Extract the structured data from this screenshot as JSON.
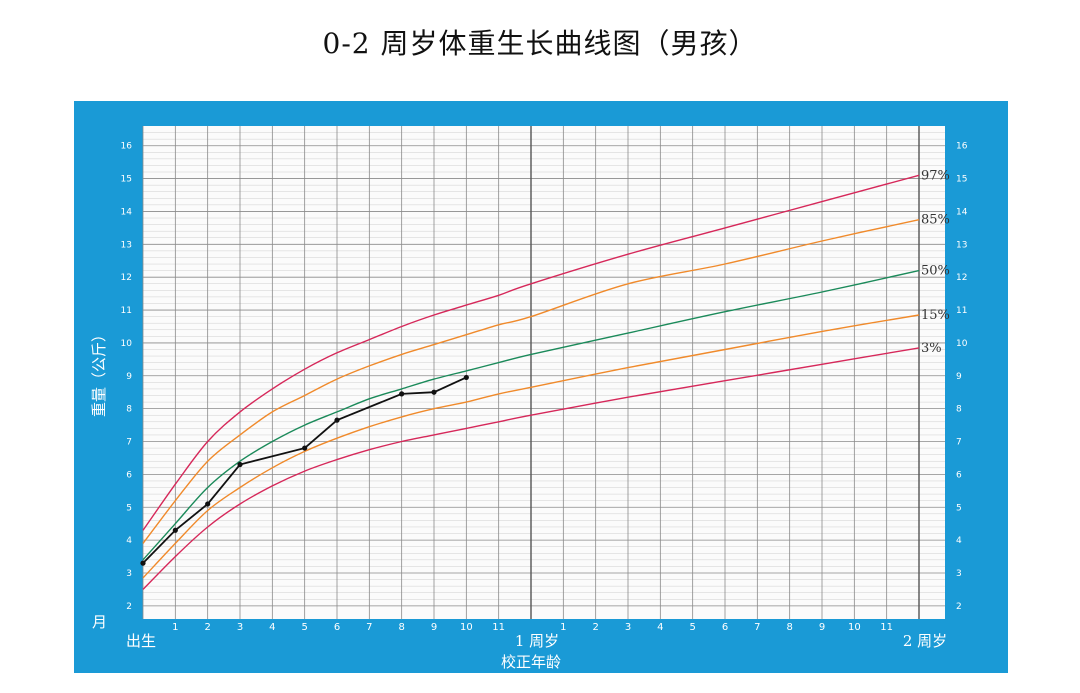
{
  "title": "0-2 周岁体重生长曲线图（男孩）",
  "colors": {
    "frame": "#1a9ad6",
    "plot_bg": "#fbfbfb",
    "grid_major": "#8a8a8a",
    "grid_minor": "#cfcfcf",
    "p97": "#d6285a",
    "p85": "#f08a2b",
    "p50": "#1b8a5a",
    "p15": "#f08a2b",
    "p3": "#d6285a",
    "child": "#111111"
  },
  "chart_data": {
    "type": "line",
    "title": "0-2 周岁体重生长曲线图（男孩）",
    "ylabel": "重量（公斤）",
    "xlabel": "校正年龄",
    "x_unit_label": "月",
    "x_range": [
      0,
      24
    ],
    "ylim": [
      1.6,
      16.6
    ],
    "y_ticks": [
      2,
      3,
      4,
      5,
      6,
      7,
      8,
      9,
      10,
      11,
      12,
      13,
      14,
      15,
      16
    ],
    "x_tick_labels": [
      {
        "x": 0,
        "label": "出生"
      },
      {
        "x": 1,
        "label": "1"
      },
      {
        "x": 2,
        "label": "2"
      },
      {
        "x": 3,
        "label": "3"
      },
      {
        "x": 4,
        "label": "4"
      },
      {
        "x": 5,
        "label": "5"
      },
      {
        "x": 6,
        "label": "6"
      },
      {
        "x": 7,
        "label": "7"
      },
      {
        "x": 8,
        "label": "8"
      },
      {
        "x": 9,
        "label": "9"
      },
      {
        "x": 10,
        "label": "10"
      },
      {
        "x": 11,
        "label": "11"
      },
      {
        "x": 12,
        "label": "1 周岁"
      },
      {
        "x": 13,
        "label": "1"
      },
      {
        "x": 14,
        "label": "2"
      },
      {
        "x": 15,
        "label": "3"
      },
      {
        "x": 16,
        "label": "4"
      },
      {
        "x": 17,
        "label": "5"
      },
      {
        "x": 18,
        "label": "6"
      },
      {
        "x": 19,
        "label": "7"
      },
      {
        "x": 20,
        "label": "8"
      },
      {
        "x": 21,
        "label": "9"
      },
      {
        "x": 22,
        "label": "10"
      },
      {
        "x": 23,
        "label": "11"
      },
      {
        "x": 24,
        "label": "2 周岁"
      }
    ],
    "grid": true,
    "series": [
      {
        "name": "97%",
        "color_key": "p97",
        "x": [
          0,
          1,
          2,
          3,
          4,
          5,
          6,
          7,
          8,
          9,
          10,
          11,
          12,
          15,
          18,
          21,
          24
        ],
        "y": [
          4.3,
          5.7,
          7.0,
          7.9,
          8.6,
          9.2,
          9.7,
          10.1,
          10.5,
          10.85,
          11.15,
          11.45,
          11.8,
          12.7,
          13.5,
          14.3,
          15.1
        ]
      },
      {
        "name": "85%",
        "color_key": "p85",
        "x": [
          0,
          1,
          2,
          3,
          4,
          5,
          6,
          7,
          8,
          9,
          10,
          11,
          12,
          15,
          18,
          21,
          24
        ],
        "y": [
          3.9,
          5.2,
          6.4,
          7.2,
          7.9,
          8.4,
          8.9,
          9.3,
          9.65,
          9.95,
          10.25,
          10.55,
          10.8,
          11.8,
          12.4,
          13.1,
          13.75
        ]
      },
      {
        "name": "50%",
        "color_key": "p50",
        "x": [
          0,
          1,
          2,
          3,
          4,
          5,
          6,
          7,
          8,
          9,
          10,
          11,
          12,
          15,
          18,
          21,
          24
        ],
        "y": [
          3.4,
          4.5,
          5.6,
          6.4,
          7.0,
          7.5,
          7.9,
          8.3,
          8.6,
          8.9,
          9.15,
          9.4,
          9.65,
          10.3,
          10.95,
          11.55,
          12.2
        ]
      },
      {
        "name": "15%",
        "color_key": "p15",
        "x": [
          0,
          1,
          2,
          3,
          4,
          5,
          6,
          7,
          8,
          9,
          10,
          11,
          12,
          15,
          18,
          21,
          24
        ],
        "y": [
          2.85,
          3.9,
          4.9,
          5.6,
          6.2,
          6.7,
          7.1,
          7.45,
          7.75,
          8.0,
          8.2,
          8.45,
          8.65,
          9.25,
          9.8,
          10.35,
          10.85
        ]
      },
      {
        "name": "3%",
        "color_key": "p3",
        "x": [
          0,
          1,
          2,
          3,
          4,
          5,
          6,
          7,
          8,
          9,
          10,
          11,
          12,
          15,
          18,
          21,
          24
        ],
        "y": [
          2.5,
          3.5,
          4.4,
          5.1,
          5.65,
          6.1,
          6.45,
          6.75,
          7.0,
          7.2,
          7.4,
          7.6,
          7.8,
          8.35,
          8.85,
          9.35,
          9.85
        ]
      },
      {
        "name": "",
        "color_key": "child",
        "markers": true,
        "x": [
          0,
          1,
          2,
          3,
          5,
          6,
          8,
          9,
          10
        ],
        "y": [
          3.3,
          4.3,
          5.1,
          6.3,
          6.8,
          7.65,
          8.45,
          8.5,
          8.95
        ]
      }
    ]
  }
}
